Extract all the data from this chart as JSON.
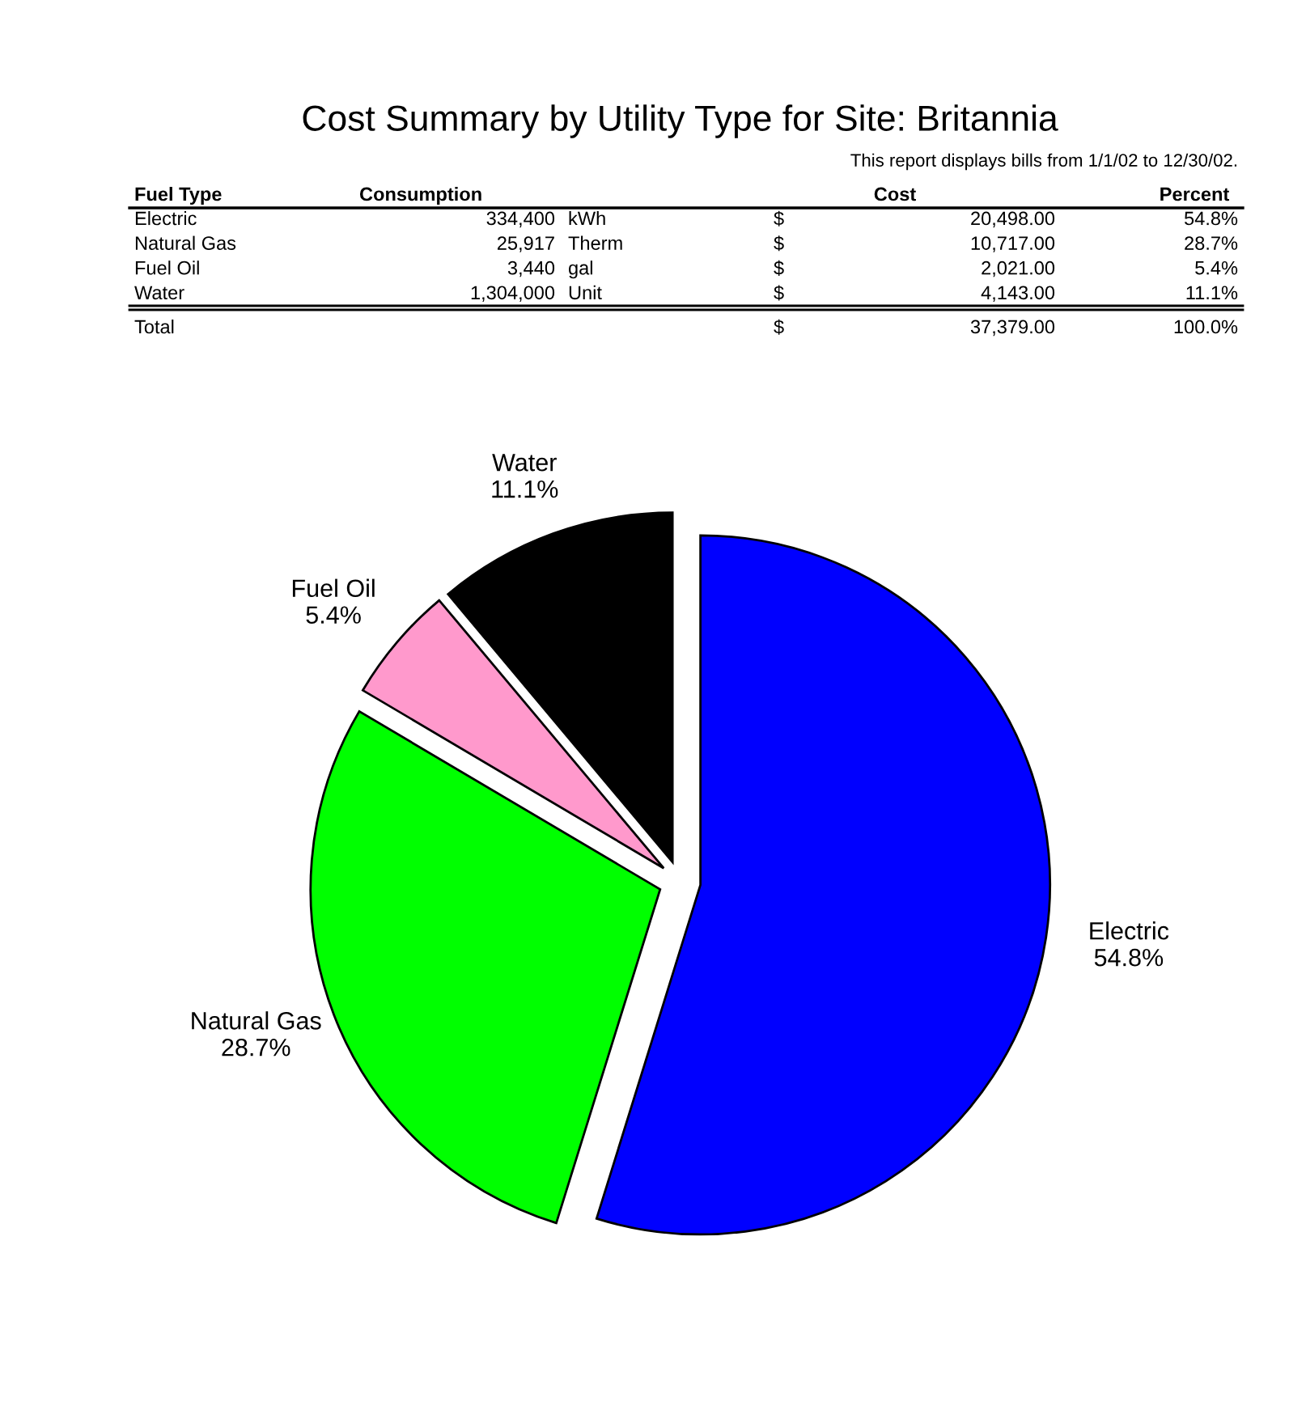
{
  "chart_data": {
    "type": "pie",
    "title": "Cost Summary by Utility Type for Site: Britannia",
    "subtitle": "This report displays bills from 1/1/02 to 12/30/02.",
    "categories": [
      "Electric",
      "Natural Gas",
      "Fuel Oil",
      "Water"
    ],
    "values": [
      54.8,
      28.7,
      5.4,
      11.1
    ],
    "colors": [
      "#0000ff",
      "#00ff00",
      "#ff99cc",
      "#000000"
    ],
    "value_labels": [
      "54.8%",
      "28.7%",
      "5.4%",
      "11.1%"
    ],
    "annotations": [
      "Fuel Type",
      "Consumption",
      "Cost",
      "Percent",
      "Electric",
      "334,400",
      "kWh",
      "$",
      "20,498.00",
      "54.8%",
      "Natural Gas",
      "25,917",
      "Therm",
      "$",
      "10,717.00",
      "28.7%",
      "Fuel Oil",
      "3,440",
      "gal",
      "$",
      "2,021.00",
      "5.4%",
      "Water",
      "1,304,000",
      "Unit",
      "$",
      "4,143.00",
      "11.1%",
      "Total",
      "$",
      "37,379.00",
      "100.0%"
    ]
  }
}
